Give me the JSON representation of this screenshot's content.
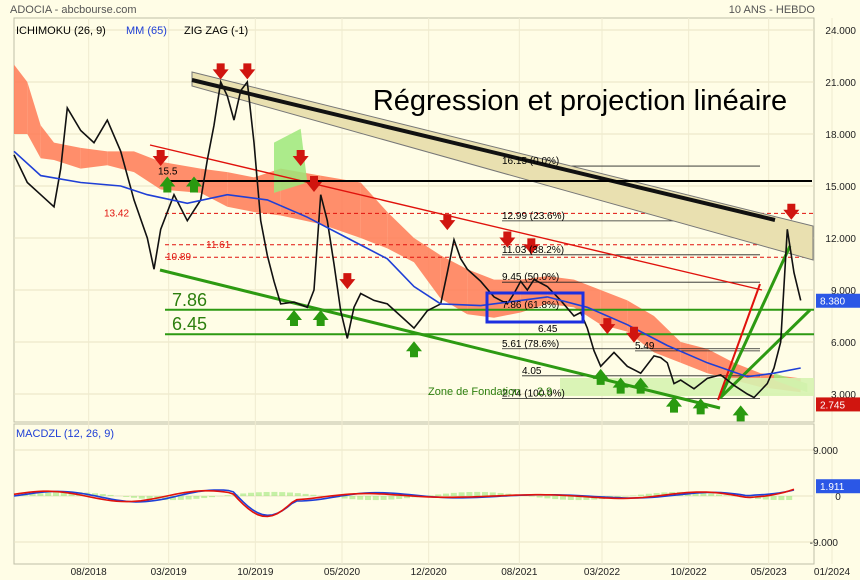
{
  "header": {
    "left": "ADOCIA - abcbourse.com",
    "right": "10 ANS - HEBDO",
    "indicators": [
      {
        "label": "ICHIMOKU (26, 9)",
        "color": "#000000"
      },
      {
        "label": "MM (65)",
        "color": "#1f3fd6"
      },
      {
        "label": "ZIG ZAG (-1)",
        "color": "#000000"
      }
    ],
    "macd_label": "MACDZL (12, 26, 9)"
  },
  "annotation_title": "Régression et projection linéaire",
  "chart_data": {
    "type": "line",
    "price_axis": {
      "ticks": [
        24,
        21,
        18,
        15,
        12,
        9,
        6,
        3
      ],
      "labels": [
        "24.000",
        "21.000",
        "18.000",
        "15.000",
        "12.000",
        "9.000",
        "6.000",
        "3.000"
      ]
    },
    "macd_axis": {
      "ticks": [
        9,
        0,
        -9
      ],
      "labels": [
        "9.000",
        "0",
        "-9.000"
      ]
    },
    "x_labels": [
      "08/2018",
      "03/2019",
      "10/2019",
      "05/2020",
      "12/2020",
      "08/2021",
      "03/2022",
      "10/2022",
      "05/2023",
      "01/2024"
    ],
    "last_price": "8.380",
    "ichimoku_marker": "2.745",
    "macd_value": "1.911",
    "price": [
      [
        2018.0,
        16.8
      ],
      [
        2018.1,
        15.2
      ],
      [
        2018.2,
        14.5
      ],
      [
        2018.3,
        13.8
      ],
      [
        2018.35,
        16.0
      ],
      [
        2018.4,
        19.5
      ],
      [
        2018.5,
        18.2
      ],
      [
        2018.6,
        17.5
      ],
      [
        2018.7,
        18.8
      ],
      [
        2018.8,
        17.0
      ],
      [
        2018.9,
        14.2
      ],
      [
        2019.0,
        12.0
      ],
      [
        2019.05,
        10.2
      ],
      [
        2019.1,
        12.5
      ],
      [
        2019.2,
        14.5
      ],
      [
        2019.3,
        13.0
      ],
      [
        2019.4,
        14.2
      ],
      [
        2019.45,
        16.5
      ],
      [
        2019.5,
        18.5
      ],
      [
        2019.55,
        21.0
      ],
      [
        2019.6,
        20.2
      ],
      [
        2019.65,
        18.8
      ],
      [
        2019.7,
        20.5
      ],
      [
        2019.75,
        21.0
      ],
      [
        2019.8,
        17.5
      ],
      [
        2019.85,
        13.0
      ],
      [
        2019.9,
        11.0
      ],
      [
        2019.95,
        9.5
      ],
      [
        2020.0,
        8.2
      ],
      [
        2020.1,
        8.3
      ],
      [
        2020.2,
        8.0
      ],
      [
        2020.25,
        9.0
      ],
      [
        2020.3,
        14.5
      ],
      [
        2020.35,
        13.0
      ],
      [
        2020.4,
        10.5
      ],
      [
        2020.45,
        7.8
      ],
      [
        2020.5,
        6.2
      ],
      [
        2020.55,
        8.0
      ],
      [
        2020.6,
        8.8
      ],
      [
        2020.7,
        8.4
      ],
      [
        2020.8,
        8.2
      ],
      [
        2020.9,
        7.5
      ],
      [
        2021.0,
        6.8
      ],
      [
        2021.05,
        7.3
      ],
      [
        2021.1,
        7.8
      ],
      [
        2021.2,
        8.2
      ],
      [
        2021.25,
        10.0
      ],
      [
        2021.3,
        11.9
      ],
      [
        2021.35,
        10.8
      ],
      [
        2021.4,
        10.2
      ],
      [
        2021.5,
        9.5
      ],
      [
        2021.6,
        8.6
      ],
      [
        2021.7,
        8.2
      ],
      [
        2021.75,
        8.8
      ],
      [
        2021.8,
        9.5
      ],
      [
        2021.85,
        9.0
      ],
      [
        2021.9,
        9.6
      ],
      [
        2022.0,
        9.2
      ],
      [
        2022.1,
        8.4
      ],
      [
        2022.2,
        7.5
      ],
      [
        2022.25,
        7.7
      ],
      [
        2022.3,
        6.8
      ],
      [
        2022.35,
        5.5
      ],
      [
        2022.4,
        4.6
      ],
      [
        2022.5,
        5.4
      ],
      [
        2022.6,
        4.6
      ],
      [
        2022.7,
        4.2
      ],
      [
        2022.8,
        5.2
      ],
      [
        2022.85,
        5.1
      ],
      [
        2022.9,
        4.8
      ],
      [
        2022.95,
        3.6
      ],
      [
        2023.0,
        3.8
      ],
      [
        2023.1,
        3.3
      ],
      [
        2023.2,
        3.9
      ],
      [
        2023.3,
        4.1
      ],
      [
        2023.4,
        3.5
      ],
      [
        2023.5,
        3.0
      ],
      [
        2023.55,
        2.8
      ],
      [
        2023.6,
        3.2
      ],
      [
        2023.65,
        3.6
      ],
      [
        2023.7,
        4.5
      ],
      [
        2023.75,
        6.0
      ],
      [
        2023.8,
        12.5
      ],
      [
        2023.85,
        10.0
      ],
      [
        2023.9,
        8.4
      ]
    ],
    "ma65": [
      [
        2018.0,
        17.0
      ],
      [
        2018.2,
        15.6
      ],
      [
        2018.5,
        15.2
      ],
      [
        2018.8,
        15.0
      ],
      [
        2019.0,
        14.5
      ],
      [
        2019.3,
        14.0
      ],
      [
        2019.6,
        14.5
      ],
      [
        2019.9,
        14.2
      ],
      [
        2020.2,
        13.2
      ],
      [
        2020.5,
        12.0
      ],
      [
        2020.8,
        10.8
      ],
      [
        2021.0,
        9.2
      ],
      [
        2021.2,
        8.2
      ],
      [
        2021.5,
        8.1
      ],
      [
        2021.8,
        8.4
      ],
      [
        2022.0,
        8.6
      ],
      [
        2022.3,
        8.0
      ],
      [
        2022.6,
        7.0
      ],
      [
        2022.9,
        5.8
      ],
      [
        2023.2,
        4.8
      ],
      [
        2023.5,
        4.0
      ],
      [
        2023.7,
        4.2
      ],
      [
        2023.9,
        4.5
      ]
    ],
    "kumo": [
      [
        2018.0,
        22.0,
        18.0
      ],
      [
        2018.1,
        21.0,
        18.0
      ],
      [
        2018.2,
        18.5,
        16.6
      ],
      [
        2018.3,
        17.5,
        16.5
      ],
      [
        2018.5,
        17.2,
        16.0
      ],
      [
        2018.7,
        17.0,
        16.2
      ],
      [
        2018.9,
        17.0,
        15.8
      ],
      [
        2019.1,
        16.4,
        14.8
      ],
      [
        2019.4,
        16.0,
        14.6
      ],
      [
        2019.6,
        15.8,
        13.8
      ],
      [
        2019.8,
        15.5,
        13.5
      ],
      [
        2020.0,
        16.0,
        13.3
      ],
      [
        2020.3,
        15.6,
        12.8
      ],
      [
        2020.6,
        15.2,
        12.0
      ],
      [
        2020.8,
        13.5,
        11.4
      ],
      [
        2021.0,
        12.0,
        10.6
      ],
      [
        2021.2,
        11.0,
        8.5
      ],
      [
        2021.4,
        10.2,
        7.6
      ],
      [
        2021.6,
        9.6,
        7.4
      ],
      [
        2021.8,
        9.6,
        7.7
      ],
      [
        2022.0,
        9.8,
        8.2
      ],
      [
        2022.2,
        9.6,
        8.0
      ],
      [
        2022.4,
        9.0,
        7.0
      ],
      [
        2022.6,
        8.4,
        6.6
      ],
      [
        2022.8,
        7.5,
        5.4
      ],
      [
        2023.0,
        6.0,
        4.8
      ],
      [
        2023.2,
        5.6,
        4.2
      ],
      [
        2023.4,
        4.8,
        3.8
      ],
      [
        2023.6,
        4.2,
        3.4
      ],
      [
        2023.9,
        3.9,
        3.1
      ]
    ],
    "fib_levels": [
      {
        "label": "16.15 (0.0%)",
        "value": 16.15
      },
      {
        "label": "12.99 (23.6%)",
        "value": 12.99
      },
      {
        "label": "11.03 (38.2%)",
        "value": 11.03
      },
      {
        "label": "9.45 (50.0%)",
        "value": 9.45
      },
      {
        "label": "7.86 (61.8%)",
        "value": 7.86
      },
      {
        "label": "6.45",
        "value": 6.45
      },
      {
        "label": "5.61 (78.6%)",
        "value": 5.61
      },
      {
        "label": "5.49",
        "value": 5.49
      },
      {
        "label": "4.05",
        "value": 4.05
      },
      {
        "label": "2.74 (100.0%)",
        "value": 2.74
      }
    ],
    "support_labels": [
      {
        "label": "15.5",
        "value": 15.5
      },
      {
        "label": "13.42",
        "value": 13.42
      },
      {
        "label": "11.61",
        "value": 11.61
      },
      {
        "label": "10.89",
        "value": 10.89
      }
    ],
    "big_levels": [
      {
        "label": "7.86",
        "value": 7.86
      },
      {
        "label": "6.45",
        "value": 6.45
      }
    ],
    "zone_label": "Zone de Fondation",
    "zone_value": "2.9"
  }
}
